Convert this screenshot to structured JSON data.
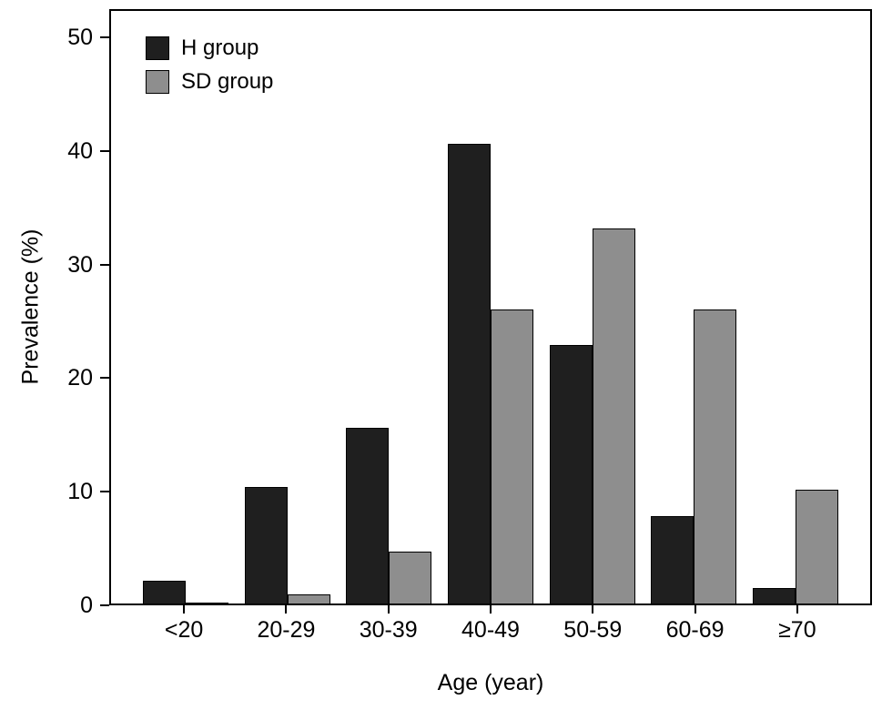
{
  "figure": {
    "background": "#ffffff",
    "axis_color": "#000000"
  },
  "chart_data": {
    "type": "bar",
    "title": "",
    "xlabel": "Age (year)",
    "ylabel": "Prevalence (%)",
    "categories": [
      "<20",
      "20-29",
      "30-39",
      "40-49",
      "50-59",
      "60-69",
      "≥70"
    ],
    "series": [
      {
        "name": "H group",
        "color": "#1f1f1f",
        "values": [
          2.0,
          10.3,
          15.5,
          40.5,
          22.8,
          7.7,
          1.4
        ]
      },
      {
        "name": "SD group",
        "color": "#8e8e8e",
        "values": [
          0.1,
          0.8,
          4.6,
          25.9,
          33.0,
          25.9,
          10.0
        ]
      }
    ],
    "ylim": [
      0,
      50
    ],
    "yticks": [
      0,
      10,
      20,
      30,
      40,
      50
    ],
    "grid": false,
    "legend_position": "top-left"
  }
}
